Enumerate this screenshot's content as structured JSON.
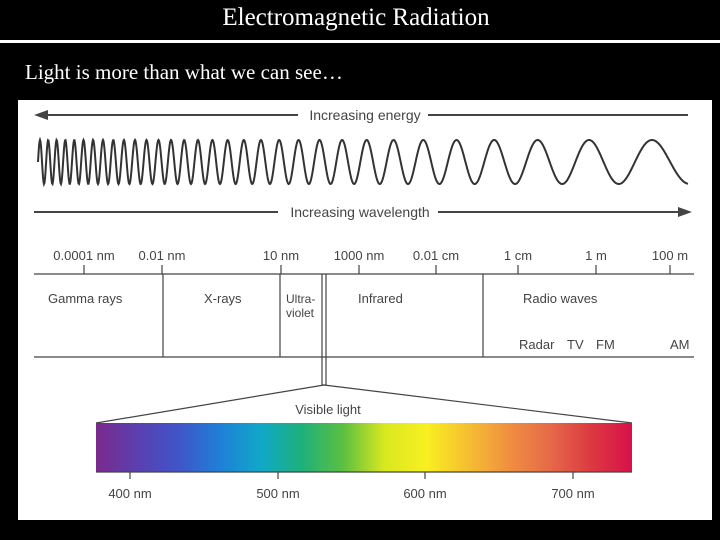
{
  "slide": {
    "title": "Electromagnetic Radiation",
    "subtitle": "Light is more than what we can see…"
  },
  "diagram": {
    "energy_label": "Increasing energy",
    "wavelength_label": "Increasing wavelength",
    "scale_ticks": [
      "0.0001 nm",
      "0.01 nm",
      "10 nm",
      "1000 nm",
      "0.01 cm",
      "1 cm",
      "1 m",
      "100 m"
    ],
    "regions": {
      "gamma": "Gamma rays",
      "xray": "X-rays",
      "uv_line1": "Ultra-",
      "uv_line2": "violet",
      "infrared": "Infrared",
      "radio": "Radio waves"
    },
    "radio_bands": [
      "Radar",
      "TV",
      "FM",
      "AM"
    ],
    "visible_label": "Visible light",
    "visible_ticks": [
      "400 nm",
      "500 nm",
      "600 nm",
      "700 nm"
    ],
    "colors": {
      "line": "#444444",
      "spectrum": [
        "#7a2a8c",
        "#5b3fb0",
        "#3f55c8",
        "#1f7fd8",
        "#10a8c8",
        "#1fb07a",
        "#5cc040",
        "#d8e820",
        "#f8f020",
        "#f6c030",
        "#f09040",
        "#e66a4a",
        "#dc3a40",
        "#d8104a"
      ]
    }
  }
}
